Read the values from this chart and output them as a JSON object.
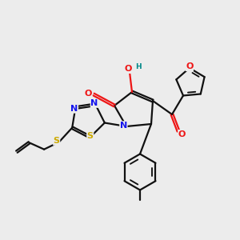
{
  "bg_color": "#ececec",
  "bond_color": "#111111",
  "bond_lw": 1.6,
  "dbl_off": 0.055,
  "colors": {
    "N": "#1515ee",
    "O": "#ee1515",
    "S": "#ccaa00",
    "H": "#008888",
    "C": "#111111"
  },
  "fs": 8.0,
  "xlim": [
    0,
    10
  ],
  "ylim": [
    0,
    10
  ]
}
